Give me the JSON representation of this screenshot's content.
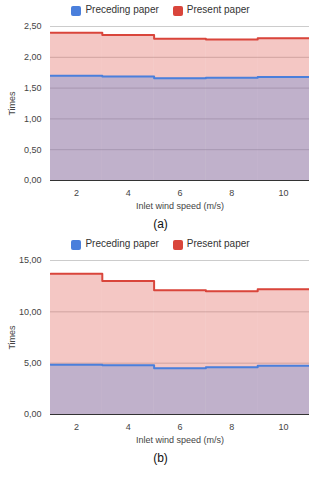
{
  "chart_data": [
    {
      "type": "area",
      "caption": "(a)",
      "xlabel": "Inlet wind speed (m/s)",
      "ylabel": "Times",
      "x": [
        2,
        4,
        6,
        8,
        10
      ],
      "series": [
        {
          "name": "Preceding paper",
          "color": "#4a7fdc",
          "values": [
            1.7,
            1.69,
            1.66,
            1.67,
            1.68
          ]
        },
        {
          "name": "Present paper",
          "color": "#d9453b",
          "values": [
            2.4,
            2.36,
            2.3,
            2.29,
            2.31
          ]
        }
      ],
      "xlim": [
        1,
        11
      ],
      "xticks": [
        2,
        4,
        6,
        8,
        10
      ],
      "ylim": [
        0,
        2.5
      ],
      "yticks": [
        {
          "value": 0,
          "label": "0,00"
        },
        {
          "value": 0.5,
          "label": "0,50"
        },
        {
          "value": 1,
          "label": "1,00"
        },
        {
          "value": 1.5,
          "label": "1,50"
        },
        {
          "value": 2,
          "label": "2,00"
        },
        {
          "value": 2.5,
          "label": "2,50"
        }
      ],
      "grid": true,
      "legend": "top"
    },
    {
      "type": "area",
      "caption": "(b)",
      "xlabel": "Inlet wind speed (m/s)",
      "ylabel": "Times",
      "x": [
        2,
        4,
        6,
        8,
        10
      ],
      "series": [
        {
          "name": "Preceding paper",
          "color": "#4a7fdc",
          "values": [
            4.85,
            4.8,
            4.5,
            4.6,
            4.75
          ]
        },
        {
          "name": "Present paper",
          "color": "#d9453b",
          "values": [
            13.7,
            13.0,
            12.1,
            12.0,
            12.2
          ]
        }
      ],
      "xlim": [
        1,
        11
      ],
      "xticks": [
        2,
        4,
        6,
        8,
        10
      ],
      "ylim": [
        0,
        15
      ],
      "yticks": [
        {
          "value": 0,
          "label": "0,00"
        },
        {
          "value": 5,
          "label": "5,00"
        },
        {
          "value": 10,
          "label": "10,00"
        },
        {
          "value": 15,
          "label": "15,00"
        }
      ],
      "grid": true,
      "legend": "top"
    }
  ]
}
